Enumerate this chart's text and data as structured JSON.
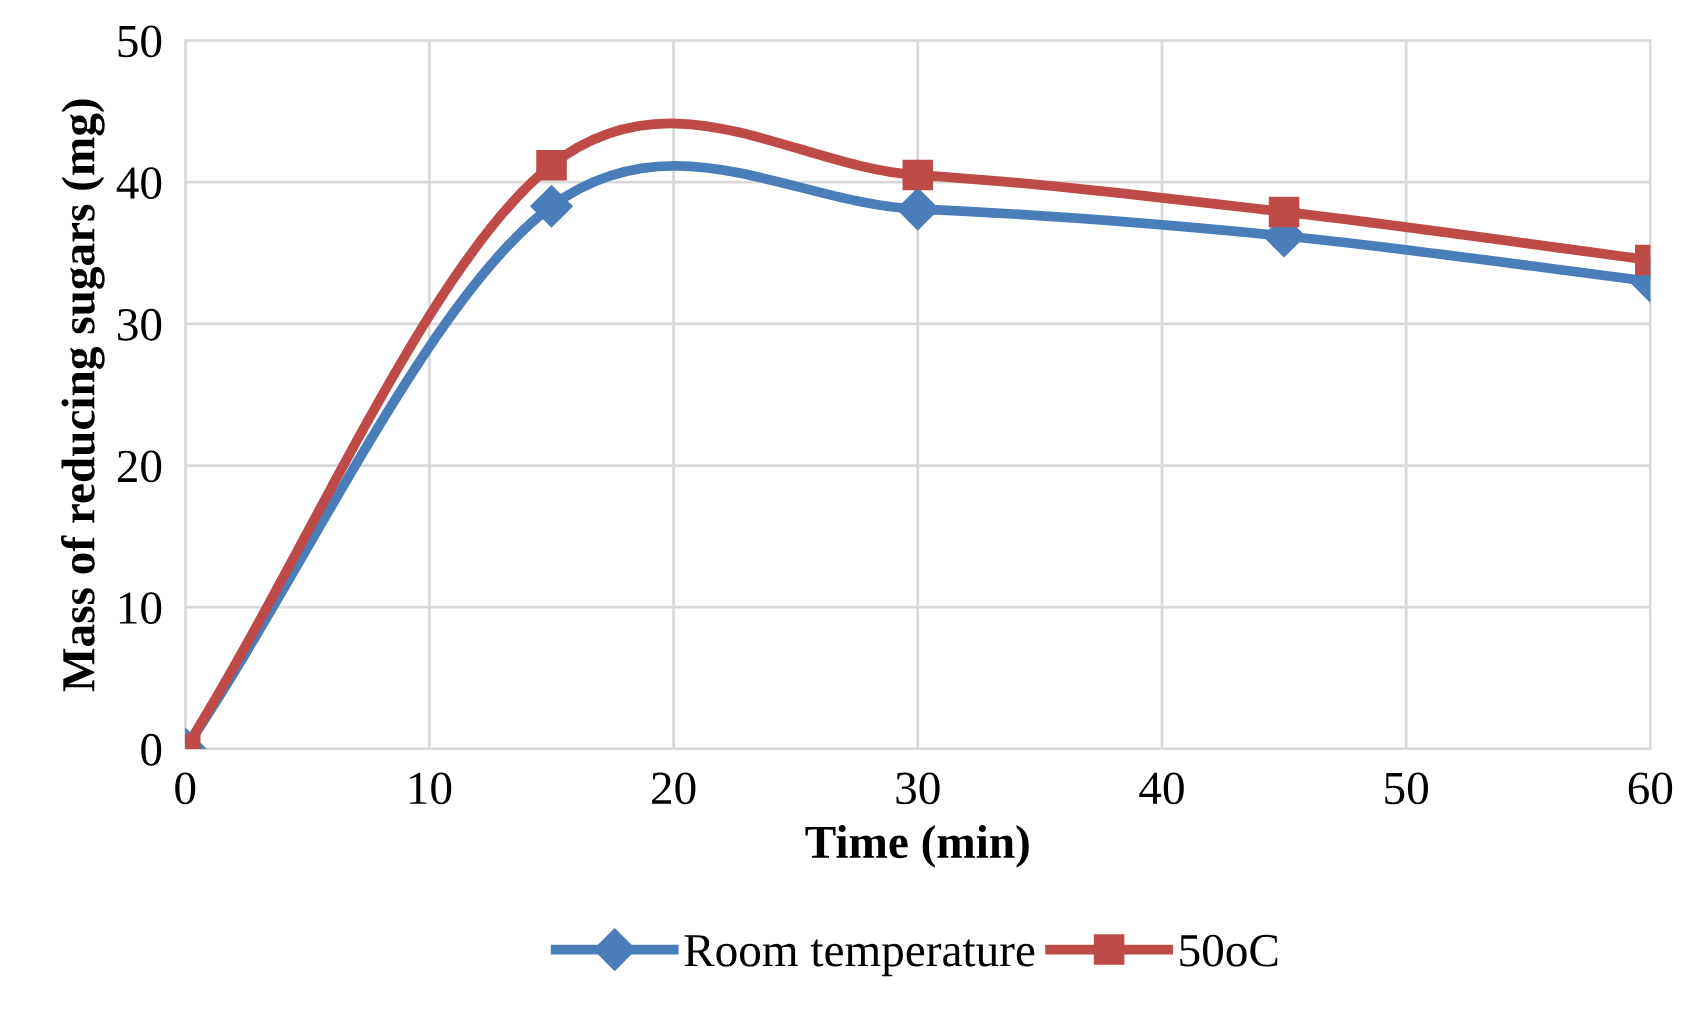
{
  "chart_data": {
    "type": "line",
    "xlabel": "Time (min)",
    "ylabel": "Mass of reducing sugars (mg)",
    "x": [
      0,
      15,
      30,
      45,
      60
    ],
    "series": [
      {
        "name": "Room temperature",
        "color": "#4a7ebb",
        "marker": "diamond",
        "values": [
          0,
          38.3,
          38.1,
          36.2,
          33.0
        ]
      },
      {
        "name": "50oC",
        "color": "#be4b48",
        "marker": "square",
        "values": [
          0,
          41.2,
          40.5,
          37.9,
          34.5
        ]
      }
    ],
    "xlim": [
      0,
      60
    ],
    "xticks": [
      0,
      10,
      20,
      30,
      40,
      50,
      60
    ],
    "ylim": [
      0,
      50
    ],
    "yticks": [
      0,
      10,
      20,
      30,
      40,
      50
    ],
    "grid": true,
    "legend": "bottom",
    "line_style": "solid"
  }
}
